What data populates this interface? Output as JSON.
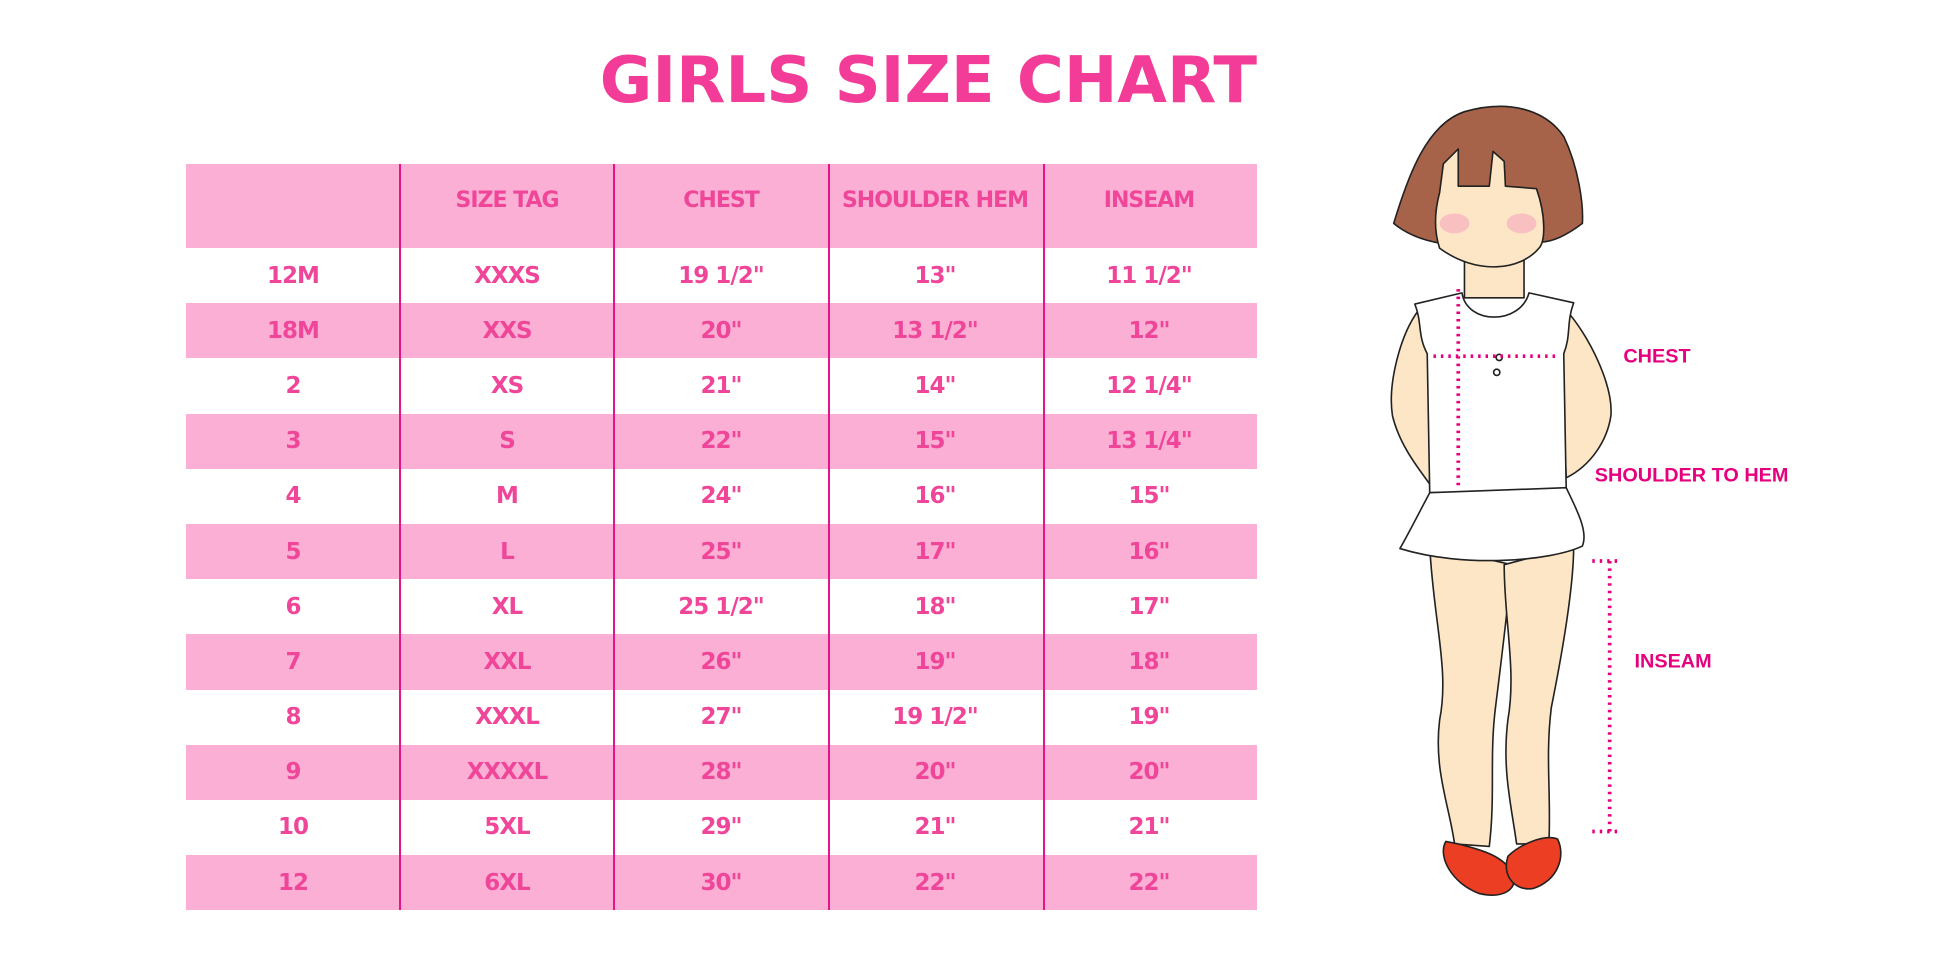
{
  "title": "GIRLS SIZE CHART",
  "table": {
    "headers": [
      "",
      "SIZE TAG",
      "CHEST",
      "SHOULDER HEM",
      "INSEAM"
    ],
    "rows": [
      [
        "12M",
        "XXXS",
        "19 1/2\"",
        "13\"",
        "11 1/2\""
      ],
      [
        "18M",
        "XXS",
        "20\"",
        "13 1/2\"",
        "12\""
      ],
      [
        "2",
        "XS",
        "21\"",
        "14\"",
        "12 1/4\""
      ],
      [
        "3",
        "S",
        "22\"",
        "15\"",
        "13 1/4\""
      ],
      [
        "4",
        "M",
        "24\"",
        "16\"",
        "15\""
      ],
      [
        "5",
        "L",
        "25\"",
        "17\"",
        "16\""
      ],
      [
        "6",
        "XL",
        "25 1/2\"",
        "18\"",
        "17\""
      ],
      [
        "7",
        "XXL",
        "26\"",
        "19\"",
        "18\""
      ],
      [
        "8",
        "XXXL",
        "27\"",
        "19 1/2\"",
        "19\""
      ],
      [
        "9",
        "XXXXL",
        "28\"",
        "20\"",
        "20\""
      ],
      [
        "10",
        "5XL",
        "29\"",
        "21\"",
        "21\""
      ],
      [
        "12",
        "6XL",
        "30\"",
        "22\"",
        "22\""
      ]
    ]
  },
  "figure": {
    "labels": {
      "chest": "CHEST",
      "shoulder_to_hem": "SHOULDER TO HEM",
      "inseam": "INSEAM"
    }
  },
  "colors": {
    "accent": "#f23c98",
    "row_pink": "#fbafd4",
    "divider": "#e4148a",
    "label": "#e6007e"
  }
}
